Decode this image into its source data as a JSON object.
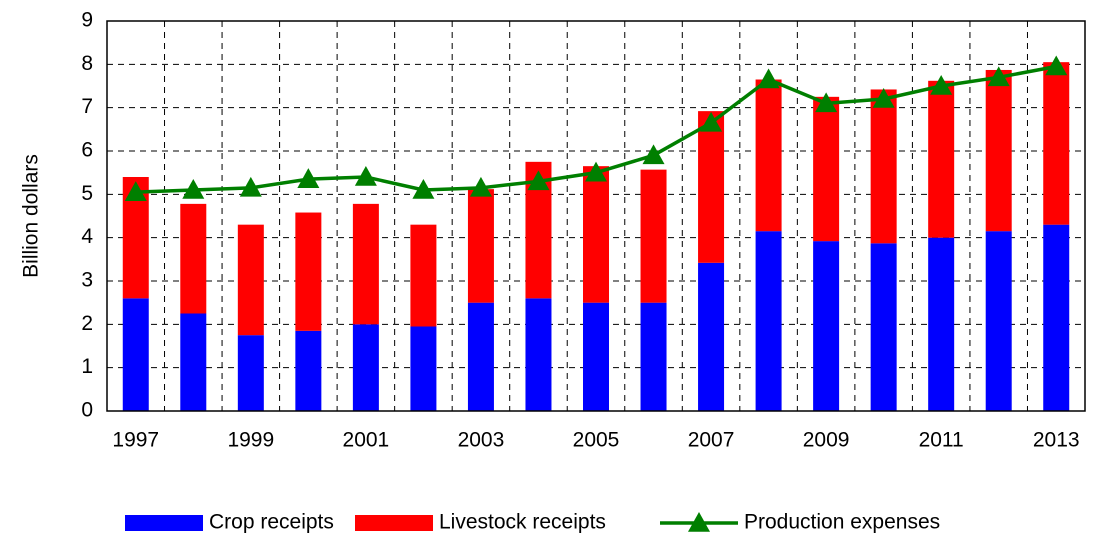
{
  "chart_data": {
    "type": "bar",
    "categories": [
      "1997",
      null,
      "1999",
      null,
      "2001",
      null,
      "2003",
      null,
      "2005",
      null,
      "2007",
      null,
      "2009",
      null,
      "2011",
      null,
      "2013"
    ],
    "series": [
      {
        "name": "Crop receipts",
        "color": "#0000ff",
        "values": [
          2.6,
          2.25,
          1.75,
          1.85,
          2.0,
          1.95,
          2.5,
          2.6,
          2.5,
          2.5,
          3.42,
          4.15,
          3.92,
          3.87,
          4.0,
          4.15,
          4.3
        ]
      },
      {
        "name": "Livestock receipts",
        "color": "#ff0000",
        "values": [
          2.8,
          2.53,
          2.55,
          2.73,
          2.78,
          2.35,
          2.62,
          3.15,
          3.15,
          3.07,
          3.5,
          3.5,
          3.33,
          3.55,
          3.62,
          3.72,
          3.75
        ]
      },
      {
        "name": "Production expenses",
        "color": "#007f00",
        "type": "line",
        "values": [
          5.05,
          5.1,
          5.15,
          5.35,
          5.4,
          5.1,
          5.15,
          5.3,
          5.5,
          5.9,
          6.65,
          7.65,
          7.1,
          7.2,
          7.5,
          7.7,
          7.95
        ]
      }
    ],
    "y_label": "Billion dollars",
    "ylim": [
      0,
      9
    ],
    "yticks": [
      0,
      1,
      2,
      3,
      4,
      5,
      6,
      7,
      8,
      9
    ],
    "grid": true,
    "legend": "bottom"
  }
}
